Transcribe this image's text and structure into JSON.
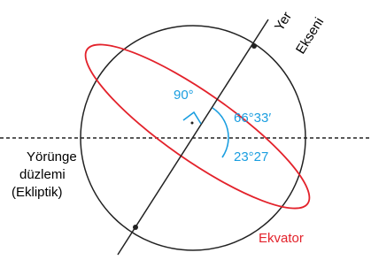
{
  "axis_label": {
    "line1": "Yer",
    "line2": "Ekseni"
  },
  "angles": {
    "right": "90°",
    "axis_tilt": "66°33′",
    "equator_tilt": "23°27"
  },
  "plane_label": {
    "line1": "Yörünge",
    "line2": "düzlemi",
    "line3": "(Ekliptik)"
  },
  "equator_label": "Ekvator"
}
